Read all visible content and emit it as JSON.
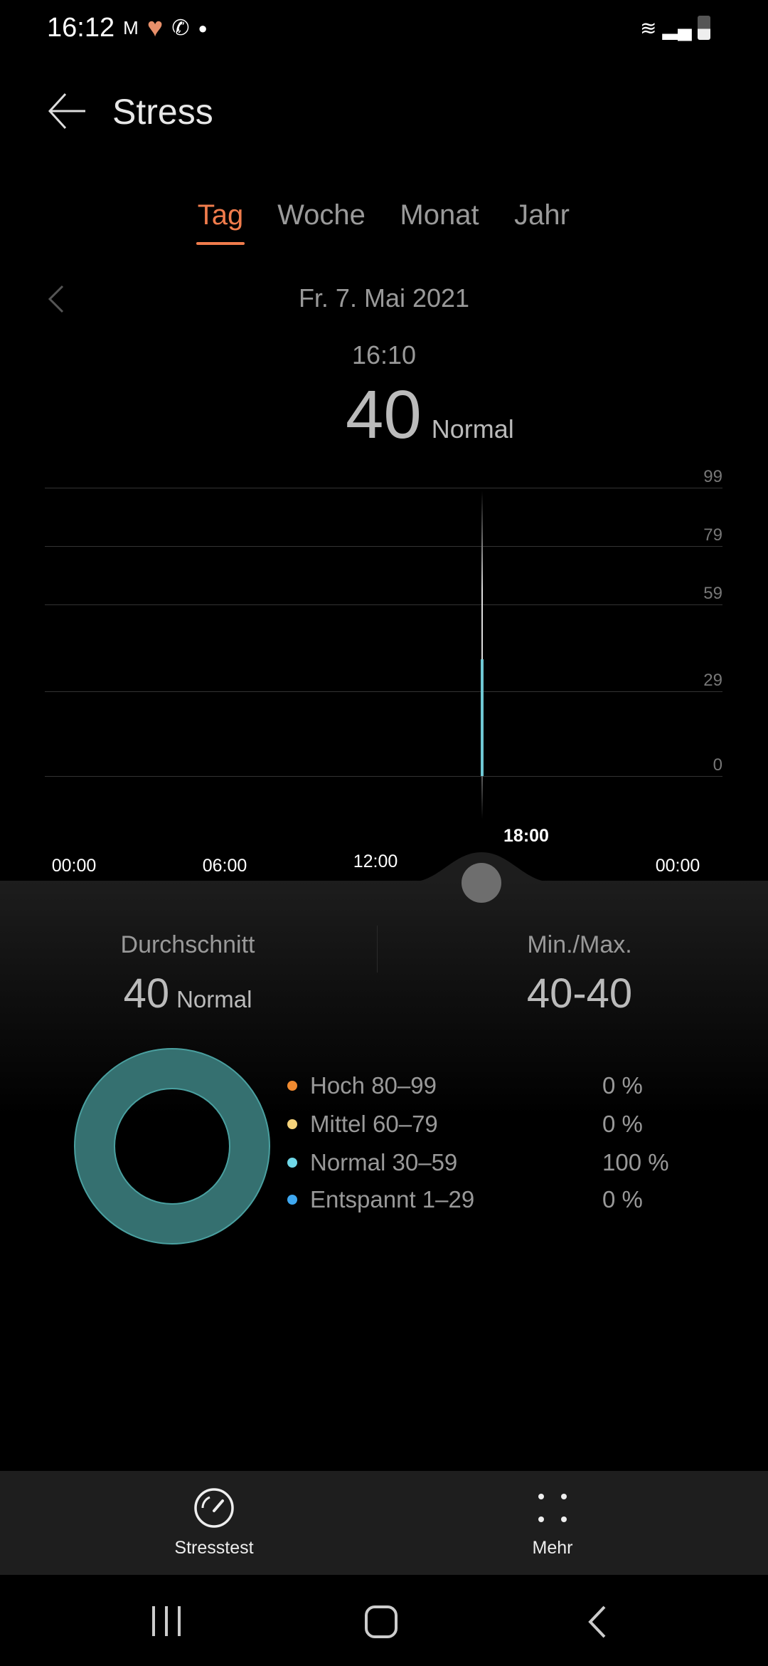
{
  "status_bar": {
    "time": "16:12"
  },
  "header": {
    "title": "Stress"
  },
  "tabs": [
    {
      "label": "Tag",
      "active": true
    },
    {
      "label": "Woche"
    },
    {
      "label": "Monat"
    },
    {
      "label": "Jahr"
    }
  ],
  "date": "Fr. 7. Mai 2021",
  "reading": {
    "time": "16:10",
    "value": "40",
    "level": "Normal"
  },
  "chart_data": {
    "type": "bar",
    "y_ticks": [
      "99",
      "79",
      "59",
      "29",
      "0"
    ],
    "x_ticks": [
      "00:00",
      "06:00",
      "12:00",
      "18:00",
      "00:00"
    ],
    "points": [
      {
        "time": "16:10",
        "value": 40
      }
    ],
    "bar_color": "#6fc8d4",
    "selected_time": "16:10"
  },
  "summary": {
    "avg_label": "Durchschnitt",
    "avg_value": "40",
    "avg_level": "Normal",
    "minmax_label": "Min./Max.",
    "minmax_value": "40-40"
  },
  "distribution": [
    {
      "label": "Hoch 80–99",
      "pct": "0 %",
      "color": "#f08a30",
      "share": 0
    },
    {
      "label": "Mittel 60–79",
      "pct": "0 %",
      "color": "#f5d27a",
      "share": 0
    },
    {
      "label": "Normal 30–59",
      "pct": "100 %",
      "color": "#6fd8e8",
      "share": 100
    },
    {
      "label": "Entspannt 1–29",
      "pct": "0 %",
      "color": "#3fa8f0",
      "share": 0
    }
  ],
  "bottom_nav": {
    "stresstest": "Stresstest",
    "more": "Mehr"
  }
}
